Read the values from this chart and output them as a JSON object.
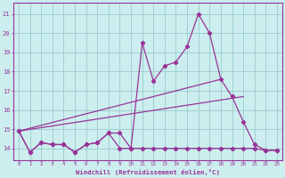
{
  "x": [
    0,
    1,
    2,
    3,
    4,
    5,
    6,
    7,
    8,
    9,
    10,
    11,
    12,
    13,
    14,
    15,
    16,
    17,
    18,
    19,
    20,
    21,
    22,
    23
  ],
  "line_main": [
    14.9,
    13.8,
    14.3,
    14.2,
    14.2,
    13.8,
    14.2,
    14.3,
    14.8,
    14.8,
    14.0,
    19.5,
    17.5,
    18.3,
    18.5,
    19.3,
    21.0,
    20.0,
    17.6,
    16.7,
    15.4,
    14.2,
    13.9,
    13.9
  ],
  "line_flat": [
    14.9,
    13.8,
    14.3,
    14.2,
    14.2,
    13.8,
    14.2,
    14.3,
    14.8,
    14.0,
    14.0,
    14.0,
    14.0,
    14.0,
    14.0,
    14.0,
    14.0,
    14.0,
    14.0,
    14.0,
    14.0,
    14.0,
    13.9,
    13.9
  ],
  "trend1_x": [
    0,
    18
  ],
  "trend1_y": [
    14.9,
    17.6
  ],
  "trend2_x": [
    0,
    20
  ],
  "trend2_y": [
    14.9,
    16.7
  ],
  "color": "#993399",
  "bg_color": "#cceeee",
  "grid_color": "#99cccc",
  "xlabel": "Windchill (Refroidissement éolien,°C)",
  "yticks": [
    14,
    15,
    16,
    17,
    18,
    19,
    20,
    21
  ],
  "ylim": [
    13.4,
    21.6
  ],
  "xlim": [
    -0.5,
    23.5
  ]
}
